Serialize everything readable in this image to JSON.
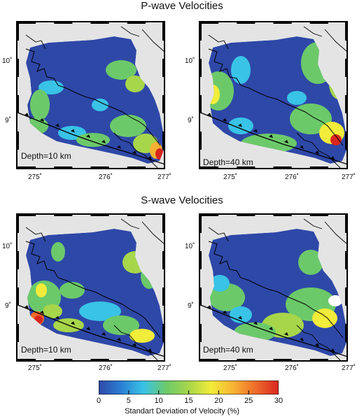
{
  "sections": {
    "p_wave_title": "P-wave Velocities",
    "s_wave_title": "S-wave Velocities"
  },
  "panels": [
    {
      "id": "p10",
      "wave": "P",
      "depth_label": "Depth=10 km"
    },
    {
      "id": "p40",
      "wave": "P",
      "depth_label": "Depth=40 km"
    },
    {
      "id": "s10",
      "wave": "S",
      "depth_label": "Depth=10 km"
    },
    {
      "id": "s40",
      "wave": "S",
      "depth_label": "Depth=40 km"
    }
  ],
  "axes": {
    "y_ticks": [
      "10˚",
      "9˚"
    ],
    "x_ticks": [
      "275˚",
      "276˚",
      "277˚"
    ]
  },
  "colorbar": {
    "title": "Standart Deviation of Velocity (%)",
    "ticks": [
      "0",
      "5",
      "10",
      "15",
      "20",
      "25",
      "30"
    ],
    "min": 0,
    "max": 30,
    "colors": [
      "#2e48a8",
      "#2a7fd4",
      "#39c3e6",
      "#6cc96a",
      "#a7d64a",
      "#f2ec3a",
      "#f7b233",
      "#ee6a2a",
      "#d8261f"
    ]
  },
  "colors": {
    "land_gray": "#e4e4e4",
    "low": "#2e48a8",
    "mid": "#6cc96a",
    "high": "#d8261f"
  }
}
